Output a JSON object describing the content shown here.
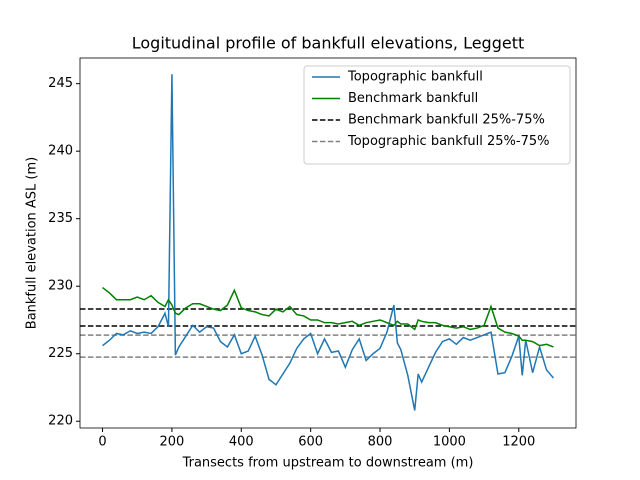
{
  "chart_data": {
    "type": "line",
    "title": "Logitudinal profile of bankfull elevations, Leggett",
    "x_label": "Transects from upstream to downstream (m)",
    "y_label": "Bankfull elevation ASL (m)",
    "x": [
      0,
      20,
      40,
      60,
      80,
      100,
      120,
      140,
      160,
      180,
      190,
      200,
      210,
      220,
      240,
      260,
      280,
      300,
      320,
      340,
      360,
      380,
      400,
      420,
      440,
      460,
      480,
      500,
      520,
      540,
      560,
      580,
      600,
      620,
      640,
      660,
      680,
      700,
      720,
      740,
      760,
      780,
      800,
      820,
      840,
      850,
      860,
      880,
      900,
      910,
      920,
      940,
      960,
      980,
      1000,
      1020,
      1040,
      1060,
      1080,
      1100,
      1120,
      1140,
      1160,
      1180,
      1200,
      1210,
      1220,
      1240,
      1260,
      1280,
      1300
    ],
    "series": [
      {
        "name": "Topographic bankfull",
        "color": "#1f77b4",
        "values": [
          225.6,
          226.0,
          226.5,
          226.4,
          226.7,
          226.5,
          226.6,
          226.5,
          227.0,
          228.0,
          227.0,
          245.7,
          224.9,
          225.5,
          226.3,
          227.1,
          226.6,
          227.0,
          226.9,
          225.9,
          225.5,
          226.4,
          225.0,
          225.2,
          226.3,
          224.9,
          223.1,
          222.7,
          223.5,
          224.3,
          225.4,
          226.1,
          226.5,
          225.0,
          226.1,
          225.1,
          225.2,
          224.0,
          225.3,
          226.1,
          224.5,
          225.0,
          225.4,
          226.6,
          228.6,
          225.8,
          225.3,
          223.4,
          220.8,
          223.5,
          222.9,
          224.0,
          225.1,
          225.9,
          226.1,
          225.7,
          226.2,
          226.0,
          226.2,
          226.4,
          226.6,
          223.5,
          223.6,
          224.8,
          226.3,
          223.4,
          226.0,
          223.6,
          225.5,
          223.8,
          223.2
        ]
      },
      {
        "name": "Benchmark bankfull",
        "color": "#008000",
        "values": [
          229.9,
          229.5,
          229.0,
          229.0,
          229.0,
          229.2,
          229.0,
          229.3,
          228.8,
          228.5,
          229.0,
          228.6,
          228.0,
          227.9,
          228.4,
          228.7,
          228.7,
          228.5,
          228.3,
          228.2,
          228.6,
          229.7,
          228.4,
          228.2,
          228.1,
          227.9,
          227.8,
          228.3,
          228.1,
          228.5,
          227.9,
          227.8,
          227.5,
          227.5,
          227.3,
          227.3,
          227.2,
          227.3,
          227.4,
          227.1,
          227.3,
          227.4,
          227.5,
          227.3,
          227.1,
          227.4,
          227.2,
          227.2,
          226.8,
          227.5,
          227.4,
          227.3,
          227.3,
          227.1,
          227.0,
          226.9,
          227.0,
          226.8,
          226.9,
          227.1,
          228.5,
          226.9,
          226.6,
          226.5,
          226.3,
          226.0,
          226.0,
          225.9,
          225.6,
          225.7,
          225.5
        ]
      }
    ],
    "reference_lines": [
      {
        "name": "Benchmark bankfull 25%-75%",
        "color": "#000000",
        "values": [
          227.05,
          228.31
        ]
      },
      {
        "name": "Topographic bankfull 25%-75%",
        "color": "#808080",
        "values": [
          224.75,
          226.38
        ]
      }
    ],
    "xlim": [
      -65,
      1365
    ],
    "ylim": [
      219.5,
      246.9
    ],
    "xticks": [
      0,
      200,
      400,
      600,
      800,
      1000,
      1200
    ],
    "yticks": [
      220,
      225,
      230,
      235,
      240,
      245
    ],
    "grid": false,
    "legend_position": "upper right"
  }
}
